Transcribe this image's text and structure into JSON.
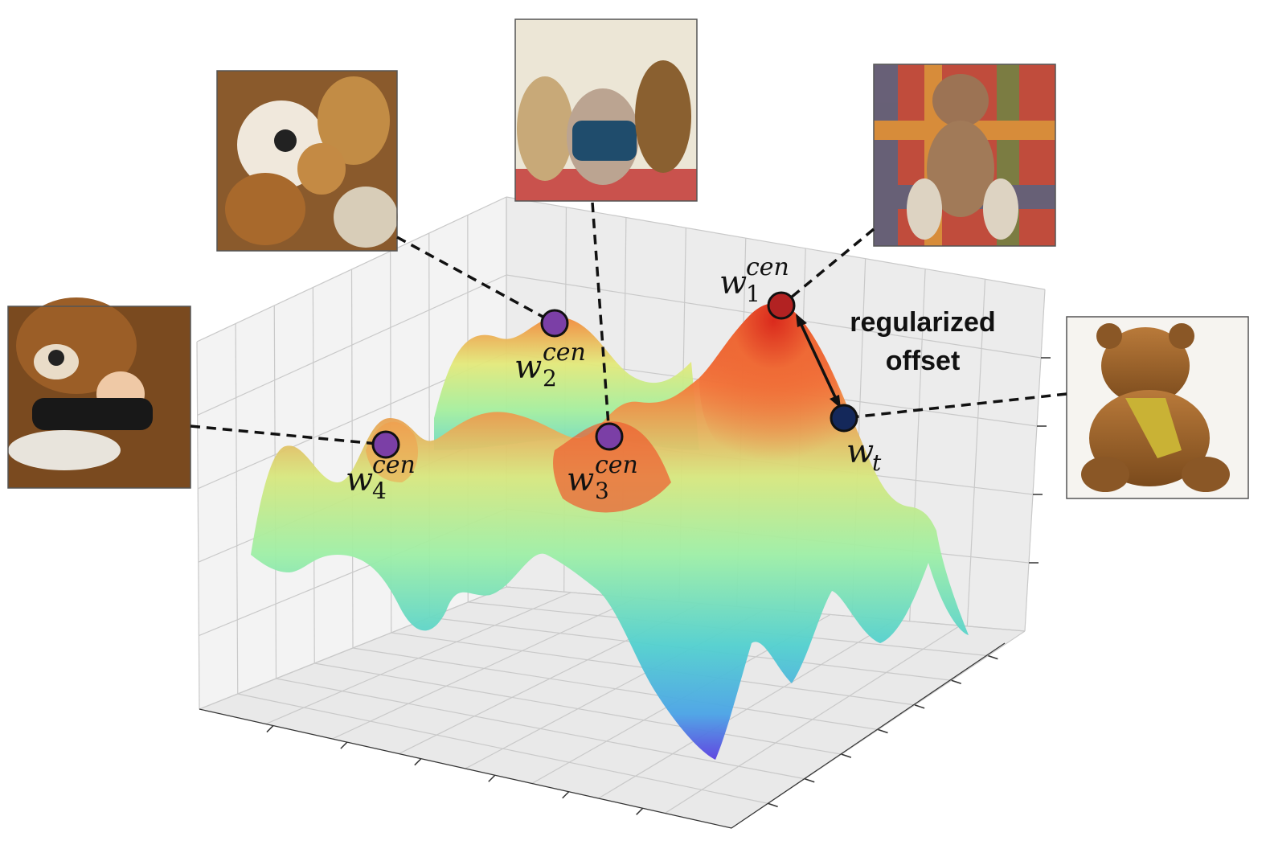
{
  "points": [
    {
      "id": "w1",
      "base": "w",
      "sub": "1",
      "sup": "cen",
      "color": "#b22222"
    },
    {
      "id": "w2",
      "base": "w",
      "sub": "2",
      "sup": "cen",
      "color": "#7b3fa6"
    },
    {
      "id": "w3",
      "base": "w",
      "sub": "3",
      "sup": "cen",
      "color": "#7b3fa6"
    },
    {
      "id": "w4",
      "base": "w",
      "sub": "4",
      "sup": "cen",
      "color": "#7b3fa6"
    },
    {
      "id": "wt",
      "base": "w",
      "sub": "t",
      "sup": "",
      "color": "#14285a"
    }
  ],
  "annotation": {
    "line1": "regularized",
    "line2": "offset"
  },
  "images": [
    {
      "id": "teddy-pile",
      "icon": "teddy-bear-pile-photo"
    },
    {
      "id": "three-teddies",
      "icon": "three-teddy-bears-photo"
    },
    {
      "id": "plaid-teddy",
      "icon": "teddy-bear-on-plaid-photo"
    },
    {
      "id": "child-teddy",
      "icon": "child-with-giant-teddy-photo"
    },
    {
      "id": "brown-teddy",
      "icon": "brown-teddy-bear-photo"
    }
  ],
  "colors": {
    "peak": "#e8412a",
    "mid": "#b8ec8c",
    "low": "#4ec9d0",
    "deep": "#5b4ce6"
  }
}
